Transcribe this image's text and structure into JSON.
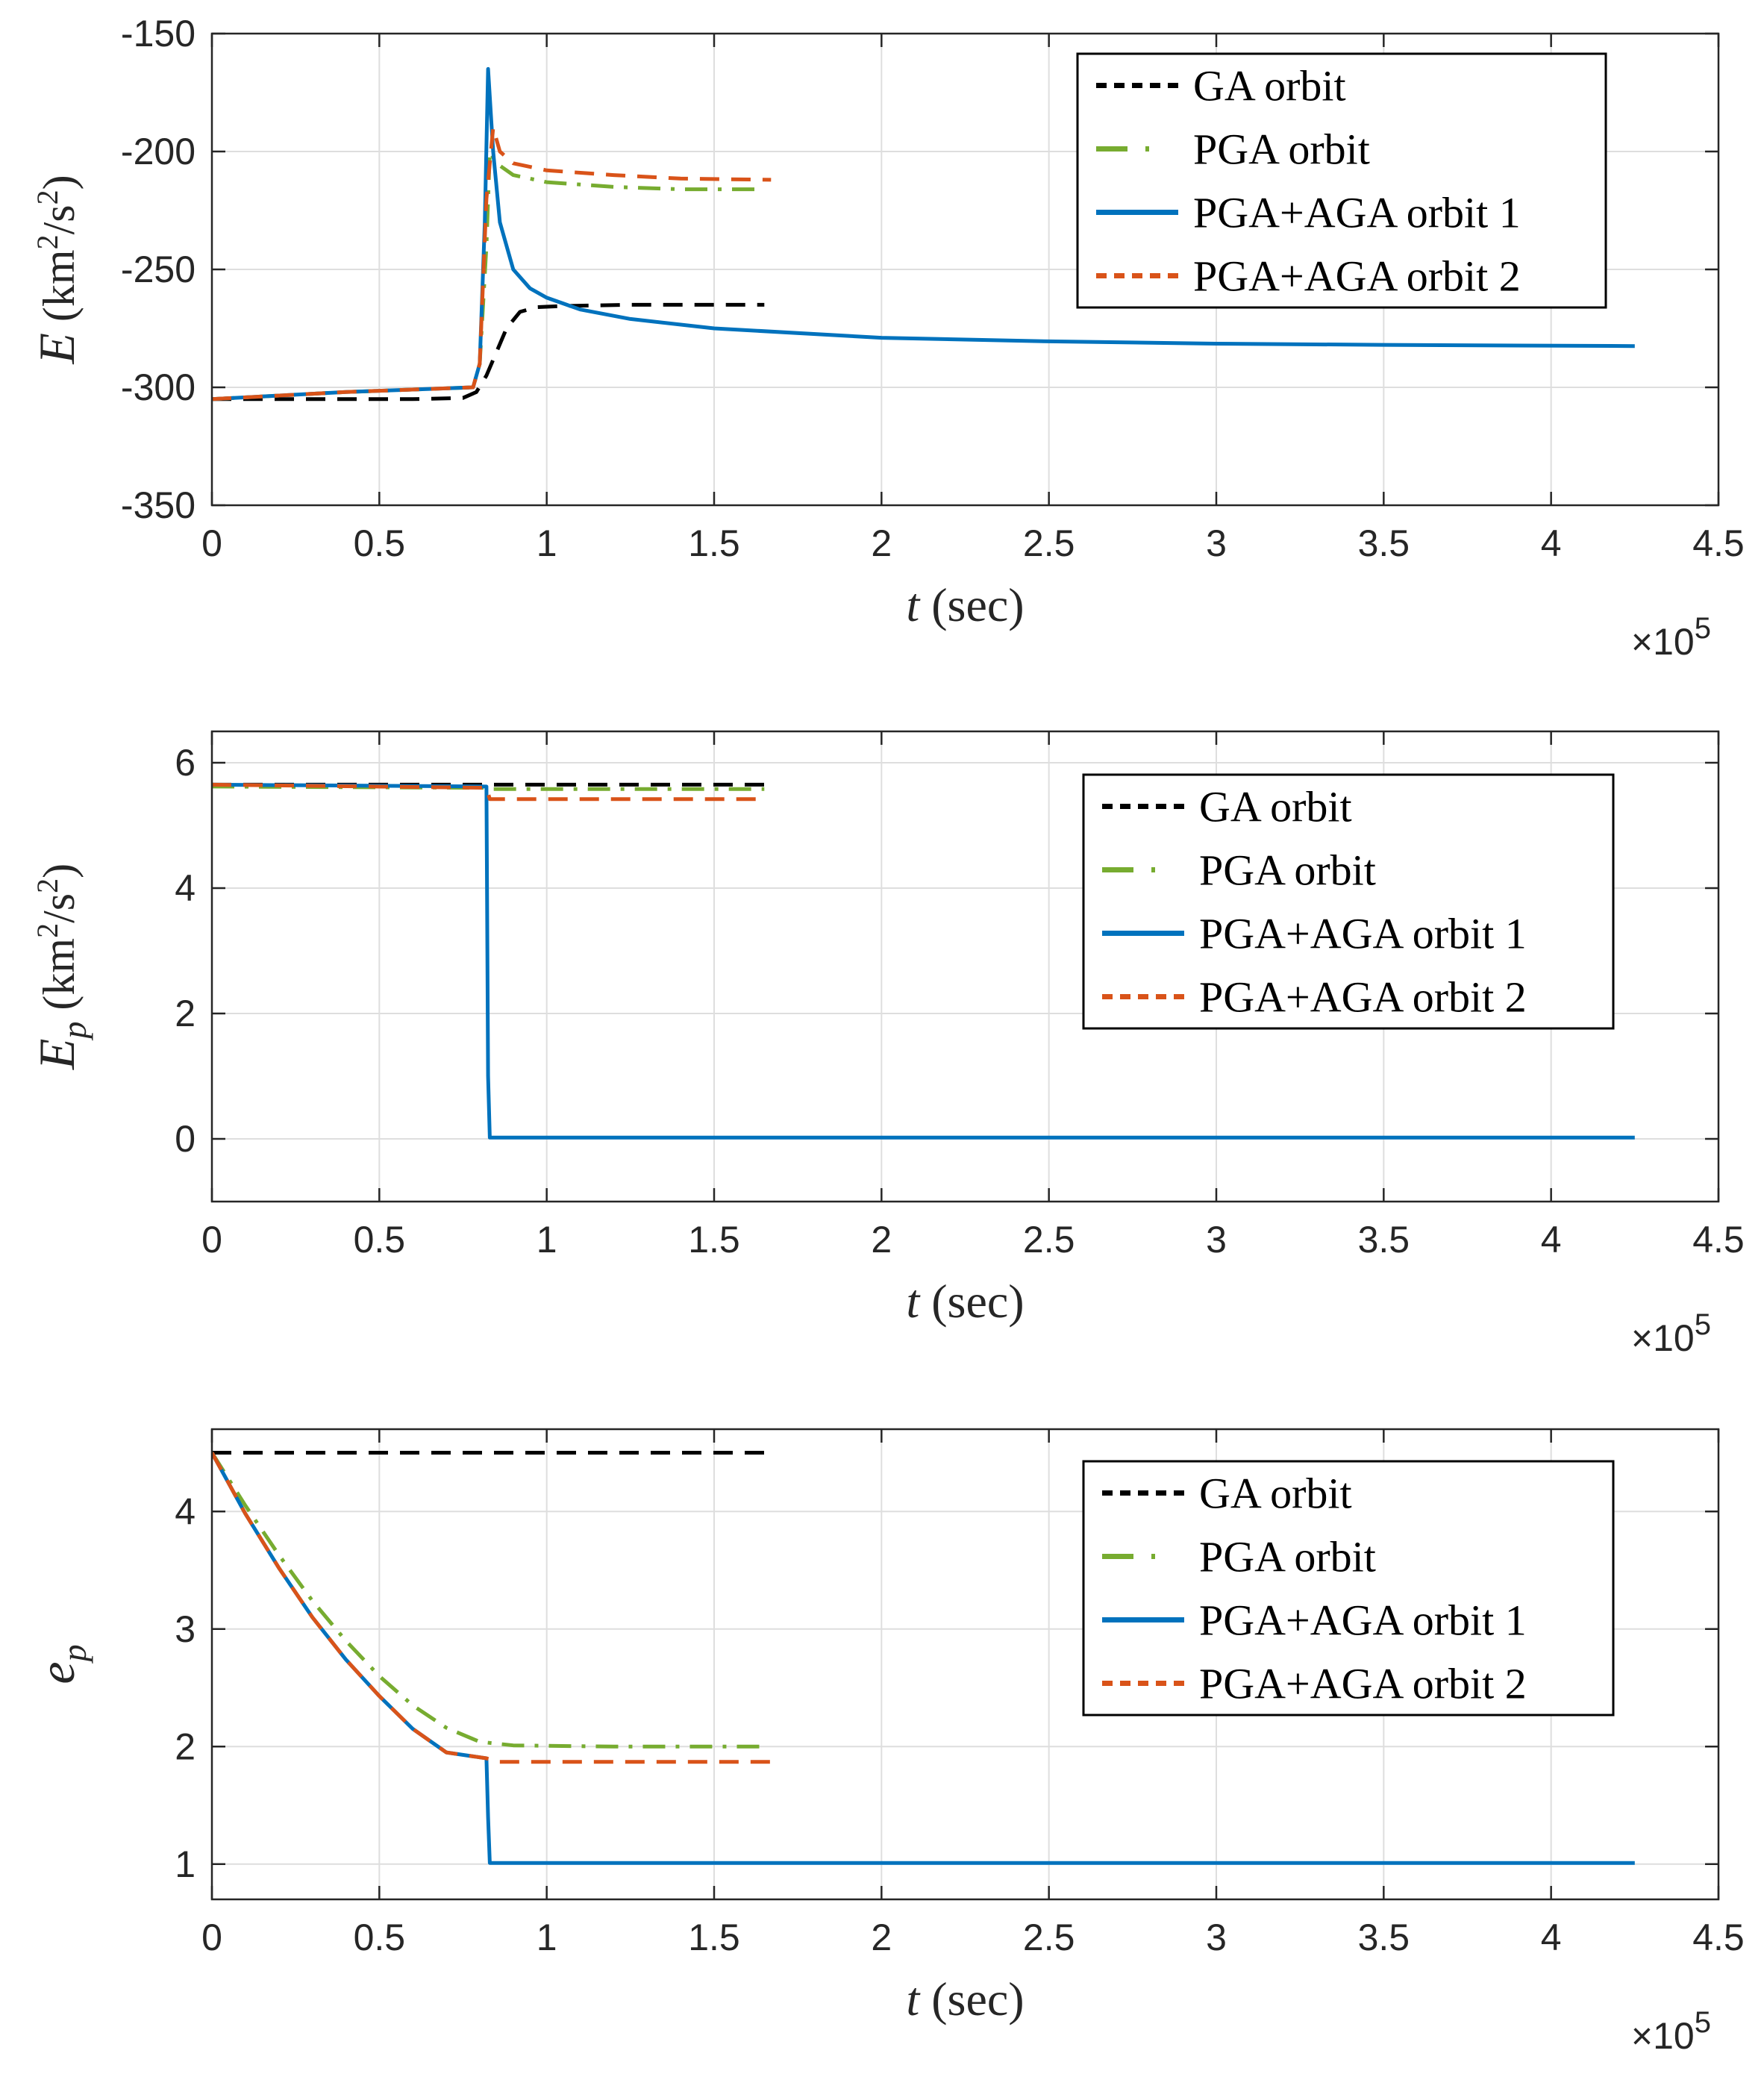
{
  "chart_data": [
    {
      "type": "line",
      "title": "",
      "xlabel": "t (sec)",
      "xlabel_var": "t",
      "xlabel_unit": "(sec)",
      "ylabel": "E (km²/s²)",
      "ylabel_var": "E",
      "ylabel_unit_open": " (km",
      "ylabel_unit_exp1": "2",
      "ylabel_unit_mid": "/s",
      "ylabel_unit_exp2": "2",
      "ylabel_unit_close": ")",
      "xlim": [
        0,
        450000
      ],
      "ylim": [
        -350,
        -150
      ],
      "xticks": [
        0,
        50000,
        100000,
        150000,
        200000,
        250000,
        300000,
        350000,
        400000,
        450000
      ],
      "xtick_labels": [
        "0",
        "0.5",
        "1",
        "1.5",
        "2",
        "2.5",
        "3",
        "3.5",
        "4",
        "4.5"
      ],
      "yticks": [
        -350,
        -300,
        -250,
        -200,
        -150
      ],
      "ytick_labels": [
        "-350",
        "-300",
        "-250",
        "-200",
        "-150"
      ],
      "x_multiplier_base": "×10",
      "x_multiplier_exp": "5",
      "grid": true,
      "legend_position": "top-right",
      "series": [
        {
          "name": "GA orbit",
          "color": "#000000",
          "dash": "dashed",
          "x": [
            0,
            60000,
            75000,
            79000,
            82000,
            85000,
            88000,
            92000,
            97000,
            105000,
            125000,
            165000
          ],
          "y": [
            -305,
            -305,
            -304.5,
            -302,
            -295,
            -285,
            -275,
            -268,
            -266,
            -265.5,
            -265,
            -265
          ]
        },
        {
          "name": "PGA orbit",
          "color": "#77AC30",
          "dash": "dashdot",
          "x": [
            0,
            40000,
            78000,
            80000,
            82000,
            83000,
            85000,
            90000,
            100000,
            120000,
            140000,
            165000
          ],
          "y": [
            -305,
            -302,
            -300,
            -290,
            -240,
            -200,
            -205,
            -210,
            -213,
            -215,
            -216,
            -216
          ]
        },
        {
          "name": "PGA+AGA orbit 1",
          "color": "#0072BD",
          "dash": "solid",
          "x": [
            0,
            40000,
            78000,
            80000,
            81500,
            82500,
            84000,
            86000,
            90000,
            95000,
            100000,
            110000,
            125000,
            150000,
            200000,
            250000,
            300000,
            350000,
            425000
          ],
          "y": [
            -305,
            -302,
            -300,
            -290,
            -230,
            -165,
            -200,
            -230,
            -250,
            -258,
            -262,
            -267,
            -271,
            -275,
            -279,
            -280.5,
            -281.5,
            -282,
            -282.5
          ]
        },
        {
          "name": "PGA+AGA orbit 2",
          "color": "#D95319",
          "dash": "dashed",
          "x": [
            0,
            40000,
            78000,
            80000,
            82000,
            84000,
            86000,
            90000,
            100000,
            120000,
            140000,
            167000
          ],
          "y": [
            -305,
            -302,
            -300,
            -290,
            -220,
            -190,
            -200,
            -205,
            -208,
            -210,
            -211.5,
            -212
          ]
        }
      ]
    },
    {
      "type": "line",
      "title": "",
      "xlabel": "t (sec)",
      "xlabel_var": "t",
      "xlabel_unit": "(sec)",
      "ylabel": "Ep (km²/s²)",
      "ylabel_var": "E",
      "ylabel_sub": "p",
      "ylabel_unit_open": " (km",
      "ylabel_unit_exp1": "2",
      "ylabel_unit_mid": "/s",
      "ylabel_unit_exp2": "2",
      "ylabel_unit_close": ")",
      "xlim": [
        0,
        450000
      ],
      "ylim": [
        -1,
        6.5
      ],
      "xticks": [
        0,
        50000,
        100000,
        150000,
        200000,
        250000,
        300000,
        350000,
        400000,
        450000
      ],
      "xtick_labels": [
        "0",
        "0.5",
        "1",
        "1.5",
        "2",
        "2.5",
        "3",
        "3.5",
        "4",
        "4.5"
      ],
      "yticks": [
        0,
        2,
        4,
        6
      ],
      "ytick_labels": [
        "0",
        "2",
        "4",
        "6"
      ],
      "x_multiplier_base": "×10",
      "x_multiplier_exp": "5",
      "grid": true,
      "legend_position": "right",
      "series": [
        {
          "name": "GA orbit",
          "color": "#000000",
          "dash": "dashed",
          "x": [
            0,
            165000
          ],
          "y": [
            5.65,
            5.65
          ]
        },
        {
          "name": "PGA orbit",
          "color": "#77AC30",
          "dash": "dashdot",
          "x": [
            0,
            82000,
            83000,
            165000
          ],
          "y": [
            5.62,
            5.6,
            5.58,
            5.58
          ]
        },
        {
          "name": "PGA+AGA orbit 1",
          "color": "#0072BD",
          "dash": "solid",
          "x": [
            0,
            82000,
            82500,
            83000,
            425000
          ],
          "y": [
            5.65,
            5.62,
            1.0,
            0.02,
            0.02
          ]
        },
        {
          "name": "PGA+AGA orbit 2",
          "color": "#D95319",
          "dash": "dashed",
          "x": [
            0,
            82000,
            83000,
            165000
          ],
          "y": [
            5.65,
            5.6,
            5.42,
            5.42
          ]
        }
      ]
    },
    {
      "type": "line",
      "title": "",
      "xlabel": "t (sec)",
      "xlabel_var": "t",
      "xlabel_unit": "(sec)",
      "ylabel": "ep",
      "ylabel_var": "e",
      "ylabel_sub": "p",
      "xlim": [
        0,
        450000
      ],
      "ylim": [
        0.7,
        4.7
      ],
      "xticks": [
        0,
        50000,
        100000,
        150000,
        200000,
        250000,
        300000,
        350000,
        400000,
        450000
      ],
      "xtick_labels": [
        "0",
        "0.5",
        "1",
        "1.5",
        "2",
        "2.5",
        "3",
        "3.5",
        "4",
        "4.5"
      ],
      "yticks": [
        1,
        2,
        3,
        4
      ],
      "ytick_labels": [
        "1",
        "2",
        "3",
        "4"
      ],
      "x_multiplier_base": "×10",
      "x_multiplier_exp": "5",
      "grid": true,
      "legend_position": "right",
      "series": [
        {
          "name": "GA orbit",
          "color": "#000000",
          "dash": "dashed",
          "x": [
            0,
            165000
          ],
          "y": [
            4.5,
            4.5
          ]
        },
        {
          "name": "PGA orbit",
          "color": "#77AC30",
          "dash": "dashdot",
          "x": [
            0,
            10000,
            20000,
            30000,
            40000,
            50000,
            60000,
            70000,
            80000,
            90000,
            120000,
            165000
          ],
          "y": [
            4.5,
            4.05,
            3.63,
            3.24,
            2.9,
            2.6,
            2.35,
            2.16,
            2.04,
            2.01,
            2.0,
            2.0
          ]
        },
        {
          "name": "PGA+AGA orbit 1",
          "color": "#0072BD",
          "dash": "solid",
          "x": [
            0,
            10000,
            20000,
            30000,
            40000,
            50000,
            60000,
            70000,
            82000,
            82500,
            83000,
            425000
          ],
          "y": [
            4.5,
            3.98,
            3.52,
            3.1,
            2.74,
            2.43,
            2.15,
            1.95,
            1.9,
            1.4,
            1.01,
            1.01
          ]
        },
        {
          "name": "PGA+AGA orbit 2",
          "color": "#D95319",
          "dash": "dashed",
          "x": [
            0,
            10000,
            20000,
            30000,
            40000,
            50000,
            60000,
            70000,
            82000,
            85000,
            120000,
            167000
          ],
          "y": [
            4.5,
            3.98,
            3.52,
            3.1,
            2.74,
            2.43,
            2.15,
            1.95,
            1.9,
            1.87,
            1.87,
            1.87
          ]
        }
      ]
    }
  ]
}
